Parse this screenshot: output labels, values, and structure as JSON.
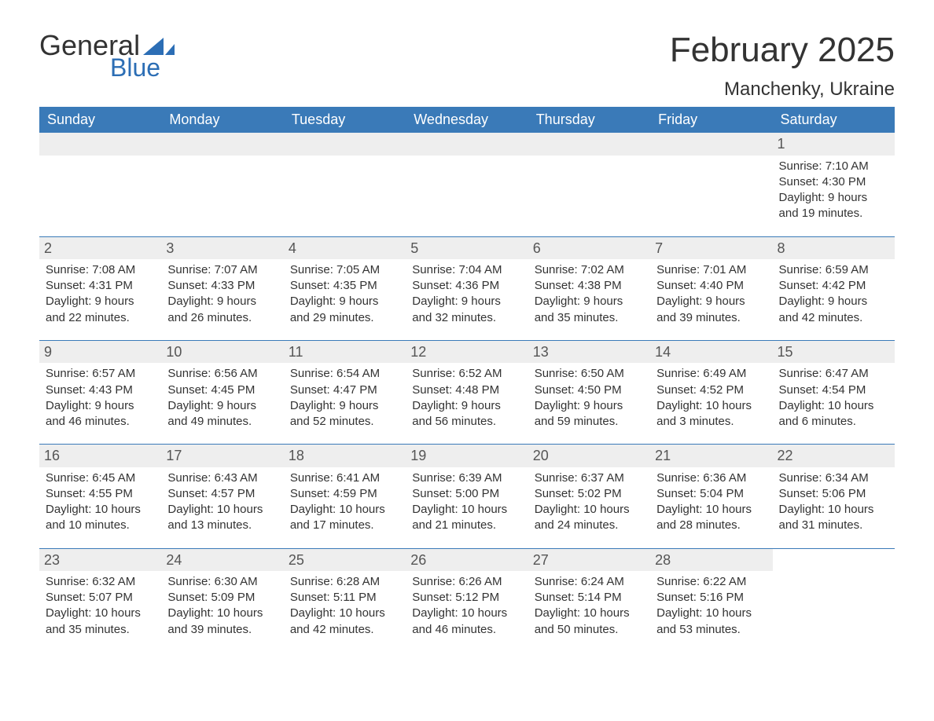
{
  "brand": {
    "line1": "General",
    "line2": "Blue",
    "text_color": "#333333",
    "accent_color": "#2c6eb5"
  },
  "title": "February 2025",
  "location": "Manchenky, Ukraine",
  "colors": {
    "header_bg": "#3a7ab8",
    "header_text": "#ffffff",
    "row_border": "#3a7ab8",
    "daynum_bg": "#eeeeee",
    "daynum_text": "#555555",
    "body_text": "#333333",
    "page_bg": "#ffffff"
  },
  "typography": {
    "title_fontsize": 44,
    "location_fontsize": 24,
    "weekday_fontsize": 18,
    "daynum_fontsize": 18,
    "body_fontsize": 15
  },
  "layout": {
    "columns": 7,
    "rows": 5,
    "start_day_index": 6
  },
  "weekdays": [
    "Sunday",
    "Monday",
    "Tuesday",
    "Wednesday",
    "Thursday",
    "Friday",
    "Saturday"
  ],
  "labels": {
    "sunrise": "Sunrise",
    "sunset": "Sunset",
    "daylight": "Daylight"
  },
  "days": [
    {
      "n": 1,
      "sunrise": "7:10 AM",
      "sunset": "4:30 PM",
      "daylight": "9 hours and 19 minutes."
    },
    {
      "n": 2,
      "sunrise": "7:08 AM",
      "sunset": "4:31 PM",
      "daylight": "9 hours and 22 minutes."
    },
    {
      "n": 3,
      "sunrise": "7:07 AM",
      "sunset": "4:33 PM",
      "daylight": "9 hours and 26 minutes."
    },
    {
      "n": 4,
      "sunrise": "7:05 AM",
      "sunset": "4:35 PM",
      "daylight": "9 hours and 29 minutes."
    },
    {
      "n": 5,
      "sunrise": "7:04 AM",
      "sunset": "4:36 PM",
      "daylight": "9 hours and 32 minutes."
    },
    {
      "n": 6,
      "sunrise": "7:02 AM",
      "sunset": "4:38 PM",
      "daylight": "9 hours and 35 minutes."
    },
    {
      "n": 7,
      "sunrise": "7:01 AM",
      "sunset": "4:40 PM",
      "daylight": "9 hours and 39 minutes."
    },
    {
      "n": 8,
      "sunrise": "6:59 AM",
      "sunset": "4:42 PM",
      "daylight": "9 hours and 42 minutes."
    },
    {
      "n": 9,
      "sunrise": "6:57 AM",
      "sunset": "4:43 PM",
      "daylight": "9 hours and 46 minutes."
    },
    {
      "n": 10,
      "sunrise": "6:56 AM",
      "sunset": "4:45 PM",
      "daylight": "9 hours and 49 minutes."
    },
    {
      "n": 11,
      "sunrise": "6:54 AM",
      "sunset": "4:47 PM",
      "daylight": "9 hours and 52 minutes."
    },
    {
      "n": 12,
      "sunrise": "6:52 AM",
      "sunset": "4:48 PM",
      "daylight": "9 hours and 56 minutes."
    },
    {
      "n": 13,
      "sunrise": "6:50 AM",
      "sunset": "4:50 PM",
      "daylight": "9 hours and 59 minutes."
    },
    {
      "n": 14,
      "sunrise": "6:49 AM",
      "sunset": "4:52 PM",
      "daylight": "10 hours and 3 minutes."
    },
    {
      "n": 15,
      "sunrise": "6:47 AM",
      "sunset": "4:54 PM",
      "daylight": "10 hours and 6 minutes."
    },
    {
      "n": 16,
      "sunrise": "6:45 AM",
      "sunset": "4:55 PM",
      "daylight": "10 hours and 10 minutes."
    },
    {
      "n": 17,
      "sunrise": "6:43 AM",
      "sunset": "4:57 PM",
      "daylight": "10 hours and 13 minutes."
    },
    {
      "n": 18,
      "sunrise": "6:41 AM",
      "sunset": "4:59 PM",
      "daylight": "10 hours and 17 minutes."
    },
    {
      "n": 19,
      "sunrise": "6:39 AM",
      "sunset": "5:00 PM",
      "daylight": "10 hours and 21 minutes."
    },
    {
      "n": 20,
      "sunrise": "6:37 AM",
      "sunset": "5:02 PM",
      "daylight": "10 hours and 24 minutes."
    },
    {
      "n": 21,
      "sunrise": "6:36 AM",
      "sunset": "5:04 PM",
      "daylight": "10 hours and 28 minutes."
    },
    {
      "n": 22,
      "sunrise": "6:34 AM",
      "sunset": "5:06 PM",
      "daylight": "10 hours and 31 minutes."
    },
    {
      "n": 23,
      "sunrise": "6:32 AM",
      "sunset": "5:07 PM",
      "daylight": "10 hours and 35 minutes."
    },
    {
      "n": 24,
      "sunrise": "6:30 AM",
      "sunset": "5:09 PM",
      "daylight": "10 hours and 39 minutes."
    },
    {
      "n": 25,
      "sunrise": "6:28 AM",
      "sunset": "5:11 PM",
      "daylight": "10 hours and 42 minutes."
    },
    {
      "n": 26,
      "sunrise": "6:26 AM",
      "sunset": "5:12 PM",
      "daylight": "10 hours and 46 minutes."
    },
    {
      "n": 27,
      "sunrise": "6:24 AM",
      "sunset": "5:14 PM",
      "daylight": "10 hours and 50 minutes."
    },
    {
      "n": 28,
      "sunrise": "6:22 AM",
      "sunset": "5:16 PM",
      "daylight": "10 hours and 53 minutes."
    }
  ]
}
